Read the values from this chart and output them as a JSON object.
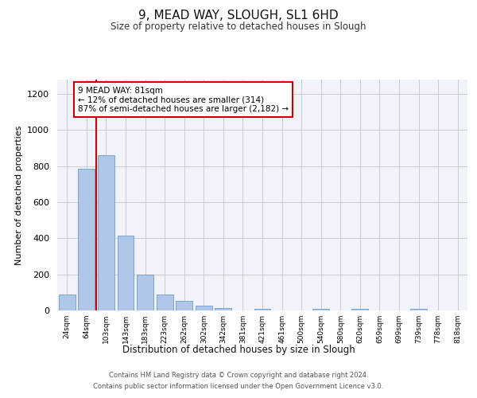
{
  "title": "9, MEAD WAY, SLOUGH, SL1 6HD",
  "subtitle": "Size of property relative to detached houses in Slough",
  "xlabel": "Distribution of detached houses by size in Slough",
  "ylabel": "Number of detached properties",
  "categories": [
    "24sqm",
    "64sqm",
    "103sqm",
    "143sqm",
    "183sqm",
    "223sqm",
    "262sqm",
    "302sqm",
    "342sqm",
    "381sqm",
    "421sqm",
    "461sqm",
    "500sqm",
    "540sqm",
    "580sqm",
    "620sqm",
    "659sqm",
    "699sqm",
    "739sqm",
    "778sqm",
    "818sqm"
  ],
  "values": [
    90,
    785,
    860,
    415,
    200,
    90,
    55,
    25,
    15,
    0,
    10,
    0,
    0,
    10,
    0,
    10,
    0,
    0,
    10,
    0,
    0
  ],
  "bar_color": "#aec6e8",
  "bar_edge_color": "#5a8fc2",
  "vline_x": 1.5,
  "vline_color": "#cc0000",
  "annotation_text": "9 MEAD WAY: 81sqm\n← 12% of detached houses are smaller (314)\n87% of semi-detached houses are larger (2,182) →",
  "annotation_box_color": "#ffffff",
  "annotation_box_edge": "#cc0000",
  "ylim": [
    0,
    1280
  ],
  "yticks": [
    0,
    200,
    400,
    600,
    800,
    1000,
    1200
  ],
  "footer_line1": "Contains HM Land Registry data © Crown copyright and database right 2024.",
  "footer_line2": "Contains public sector information licensed under the Open Government Licence v3.0.",
  "bg_color": "#f0f4fa",
  "grid_color": "#cccccc"
}
